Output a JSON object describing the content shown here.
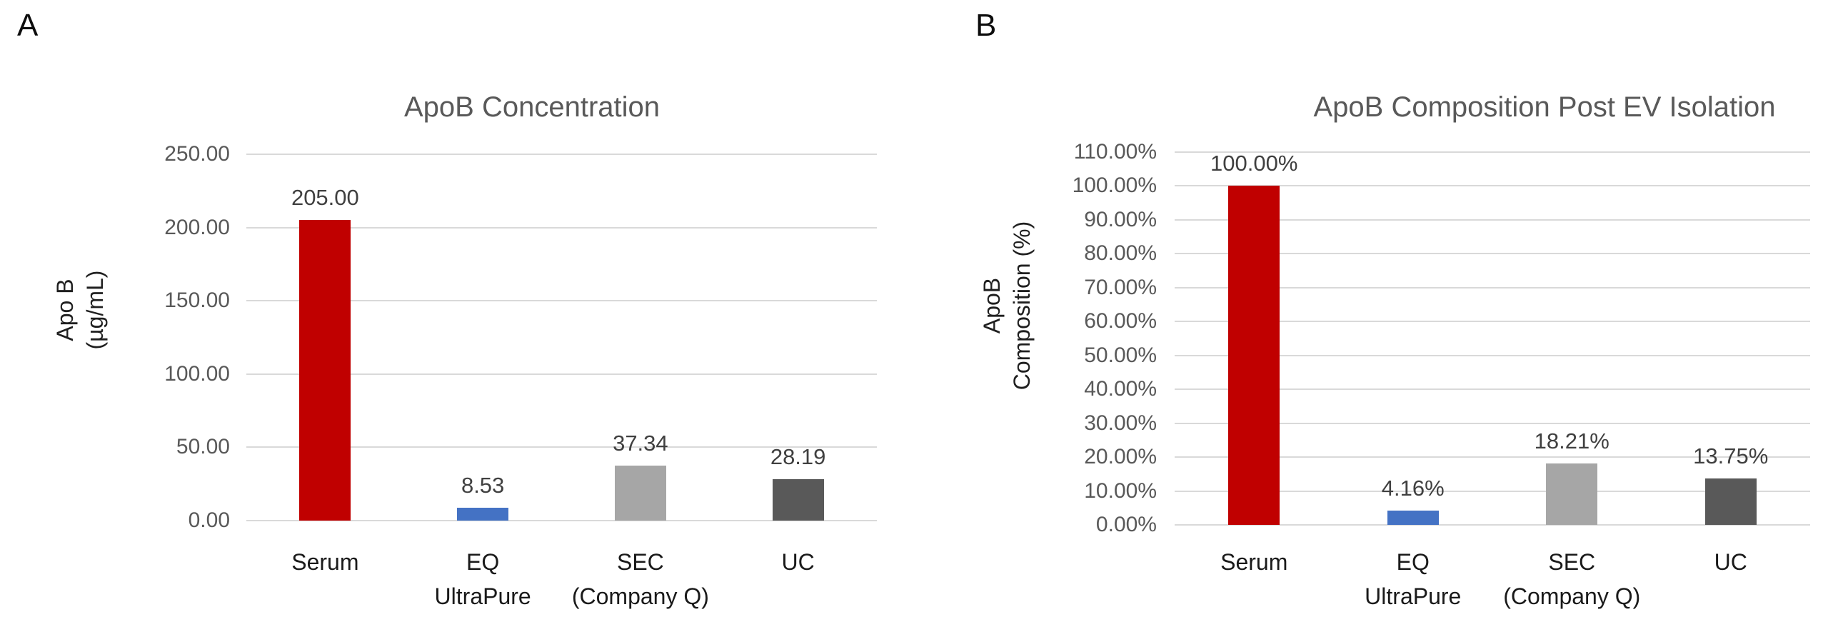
{
  "figure": {
    "panels": [
      {
        "letter": "A",
        "title": "ApoB Concentration",
        "y_axis_title_lines": [
          "Apo B",
          "(µg/mL)"
        ]
      },
      {
        "letter": "B",
        "title": "ApoB Composition Post EV Isolation",
        "y_axis_title_lines": [
          "ApoB",
          "Composition (%)"
        ]
      }
    ]
  },
  "chart_data": [
    {
      "type": "bar",
      "title": "ApoB Concentration",
      "ylabel": "Apo B (µg/mL)",
      "xlabel": "",
      "categories": [
        "Serum",
        "EQ UltraPure",
        "SEC (Company Q)",
        "UC"
      ],
      "categories_lines": [
        [
          "Serum"
        ],
        [
          "EQ",
          "UltraPure"
        ],
        [
          "SEC",
          "(Company Q)"
        ],
        [
          "UC"
        ]
      ],
      "values": [
        205.0,
        8.53,
        37.34,
        28.19
      ],
      "data_labels": [
        "205.00",
        "8.53",
        "37.34",
        "28.19"
      ],
      "ylim": [
        0,
        250
      ],
      "ytick_step": 50,
      "ytick_labels": [
        "0.00",
        "50.00",
        "100.00",
        "150.00",
        "200.00",
        "250.00"
      ],
      "bar_colors": [
        "#c00000",
        "#4472c4",
        "#a6a6a6",
        "#595959"
      ],
      "grid": true,
      "legend": "none"
    },
    {
      "type": "bar",
      "title": "ApoB Composition Post EV Isolation",
      "ylabel": "ApoB Composition (%)",
      "xlabel": "",
      "categories": [
        "Serum",
        "EQ UltraPure",
        "SEC (Company Q)",
        "UC"
      ],
      "categories_lines": [
        [
          "Serum"
        ],
        [
          "EQ",
          "UltraPure"
        ],
        [
          "SEC",
          "(Company Q)"
        ],
        [
          "UC"
        ]
      ],
      "values": [
        100.0,
        4.16,
        18.21,
        13.75
      ],
      "data_labels": [
        "100.00%",
        "4.16%",
        "18.21%",
        "13.75%"
      ],
      "ylim": [
        0,
        110
      ],
      "ytick_step": 10,
      "ytick_labels": [
        "0.00%",
        "10.00%",
        "20.00%",
        "30.00%",
        "40.00%",
        "50.00%",
        "60.00%",
        "70.00%",
        "80.00%",
        "90.00%",
        "100.00%",
        "110.00%"
      ],
      "bar_colors": [
        "#c00000",
        "#4472c4",
        "#a6a6a6",
        "#595959"
      ],
      "grid": true,
      "legend": "none"
    }
  ],
  "colors": {
    "bar_red": "#c00000",
    "bar_blue": "#4472c4",
    "bar_light_gray": "#a6a6a6",
    "bar_dark_gray": "#595959",
    "gridline": "#d9d9d9",
    "tick_label_text": "#595959",
    "title_text": "#595959",
    "dark_text": "#1a1a1a",
    "background": "#ffffff"
  }
}
